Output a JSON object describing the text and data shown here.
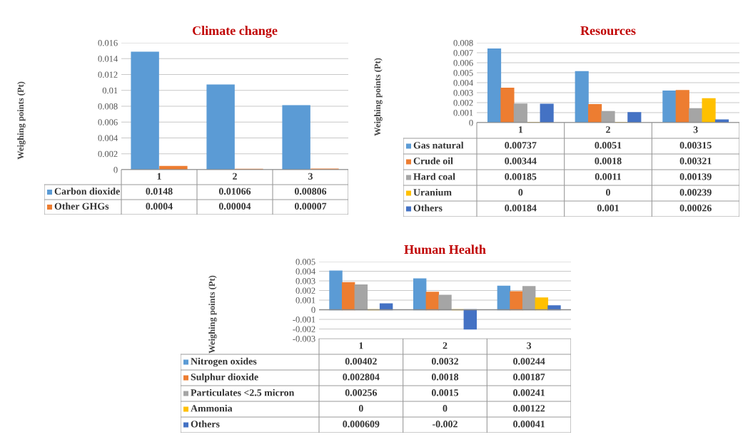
{
  "chart_data": [
    {
      "type": "bar",
      "title": "Climate change",
      "ylabel": "Weighing points (Pt)",
      "legend": "bottom",
      "categories": [
        "1",
        "2",
        "3"
      ],
      "ylim": [
        0,
        0.016
      ],
      "yticks": [
        0,
        0.002,
        0.004,
        0.006,
        0.008,
        0.01,
        0.012,
        0.014,
        0.016
      ],
      "grid": "y",
      "tick_labels": "y",
      "series": [
        {
          "name": "Carbon dioxide",
          "color": "#5b9bd5",
          "values": [
            0.0148,
            0.01066,
            0.00806
          ],
          "value_labels": [
            "0.0148",
            "0.01066",
            "0.00806"
          ]
        },
        {
          "name": "Other GHGs",
          "color": "#ed7d31",
          "values": [
            0.0004,
            4e-05,
            7e-05
          ],
          "value_labels": [
            "0.0004",
            "0.00004",
            "0.00007"
          ]
        }
      ]
    },
    {
      "type": "bar",
      "title": "Resources",
      "ylabel": "Weighing points (Pt)",
      "legend": "bottom",
      "categories": [
        "1",
        "2",
        "3"
      ],
      "ylim": [
        0,
        0.008
      ],
      "yticks": [
        0,
        0.001,
        0.002,
        0.003,
        0.004,
        0.005,
        0.006,
        0.007,
        0.008
      ],
      "grid": "y",
      "tick_labels": "y",
      "series": [
        {
          "name": "Gas natural",
          "color": "#5b9bd5",
          "values": [
            0.00737,
            0.0051,
            0.00315
          ],
          "value_labels": [
            "0.00737",
            "0.0051",
            "0.00315"
          ]
        },
        {
          "name": "Crude oil",
          "color": "#ed7d31",
          "values": [
            0.00344,
            0.0018,
            0.00321
          ],
          "value_labels": [
            "0.00344",
            "0.0018",
            "0.00321"
          ]
        },
        {
          "name": "Hard coal",
          "color": "#a5a5a5",
          "values": [
            0.00185,
            0.0011,
            0.00139
          ],
          "value_labels": [
            "0.00185",
            "0.0011",
            "0.00139"
          ]
        },
        {
          "name": "Uranium",
          "color": "#ffc000",
          "values": [
            0,
            0,
            0.00239
          ],
          "value_labels": [
            "0",
            "0",
            "0.00239"
          ]
        },
        {
          "name": "Others",
          "color": "#4472c4",
          "values": [
            0.00184,
            0.001,
            0.00026
          ],
          "value_labels": [
            "0.00184",
            "0.001",
            "0.00026"
          ]
        }
      ]
    },
    {
      "type": "bar",
      "title": "Human Health",
      "ylabel": "Weighing points (Pt)",
      "legend": "bottom",
      "categories": [
        "1",
        "2",
        "3"
      ],
      "ylim": [
        -0.003,
        0.005
      ],
      "yticks": [
        -0.003,
        -0.002,
        -0.001,
        0,
        0.001,
        0.002,
        0.003,
        0.004,
        0.005
      ],
      "grid": "y",
      "tick_labels": "y",
      "series": [
        {
          "name": "Nitrogen oxides",
          "color": "#5b9bd5",
          "values": [
            0.00402,
            0.0032,
            0.00244
          ],
          "value_labels": [
            "0.00402",
            "0.0032",
            "0.00244"
          ]
        },
        {
          "name": "Sulphur dioxide",
          "color": "#ed7d31",
          "values": [
            0.002804,
            0.0018,
            0.00187
          ],
          "value_labels": [
            "0.002804",
            "0.0018",
            "0.00187"
          ]
        },
        {
          "name": "Particulates <2.5 micron",
          "color": "#a5a5a5",
          "values": [
            0.00256,
            0.0015,
            0.00241
          ],
          "value_labels": [
            "0.00256",
            "0.0015",
            "0.00241"
          ]
        },
        {
          "name": "Ammonia",
          "color": "#ffc000",
          "values": [
            0,
            0,
            0.00122
          ],
          "value_labels": [
            "0",
            "0",
            "0.00122"
          ]
        },
        {
          "name": "Others",
          "color": "#4472c4",
          "values": [
            0.000609,
            -0.002,
            0.00041
          ],
          "value_labels": [
            "0.000609",
            "-0.002",
            "0.00041"
          ]
        }
      ]
    }
  ]
}
